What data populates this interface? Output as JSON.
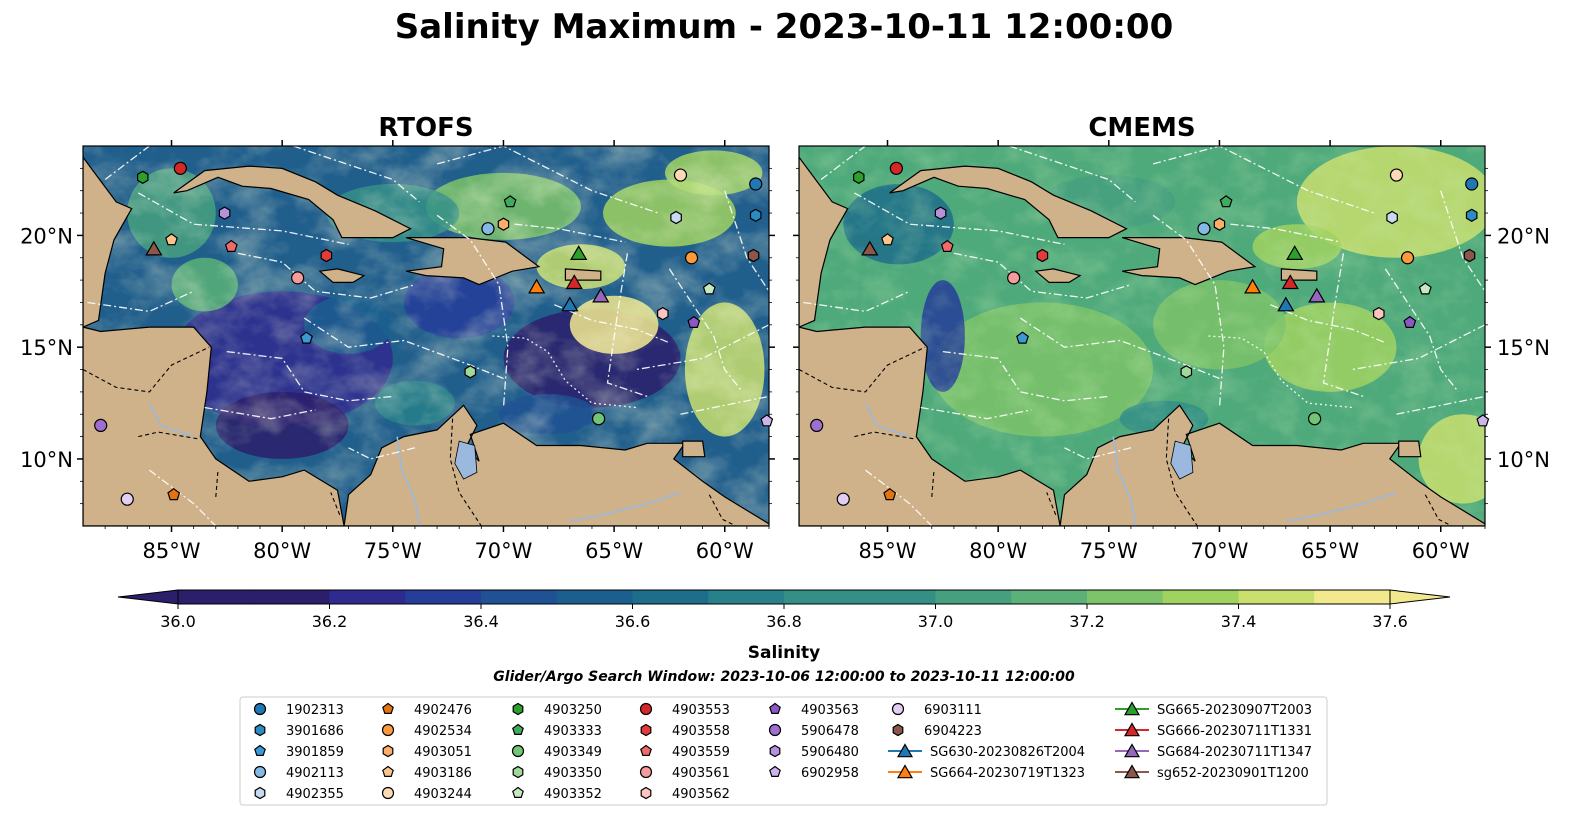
{
  "figure": {
    "title": "Salinity Maximum - 2023-10-11 12:00:00",
    "search_window_note": "Glider/Argo Search Window: 2023-10-06 12:00:00 to 2023-10-11 12:00:00"
  },
  "colors": {
    "land": "#cfb28a",
    "river": "#9bb8de",
    "boundary": "#000000",
    "eez": "#ffffff",
    "colormap": [
      "#2b1f6b",
      "#2f2a8e",
      "#263d9a",
      "#205193",
      "#1b5f8f",
      "#1e6e8b",
      "#27808a",
      "#358f87",
      "#46a07f",
      "#5bb177",
      "#7dc36a",
      "#a0d261",
      "#c9df6e",
      "#f2e98e"
    ]
  },
  "chart_data": [
    {
      "type": "heatmap",
      "title": "RTOFS",
      "xlim": [
        -89,
        -58
      ],
      "ylim": [
        7,
        24
      ],
      "xticks": [
        "85°W",
        "80°W",
        "75°W",
        "70°W",
        "65°W",
        "60°W"
      ],
      "yticks": [
        "10°N",
        "15°N",
        "20°N"
      ],
      "field_summary": "Low salinity (~36.0) in the Caribbean Sea interior and Pacific; high salinity (~37.6) patches near Puerto Rico and the Lesser Antilles"
    },
    {
      "type": "heatmap",
      "title": "CMEMS",
      "xlim": [
        -89,
        -58
      ],
      "ylim": [
        7,
        24
      ],
      "xticks": [
        "85°W",
        "80°W",
        "75°W",
        "70°W",
        "65°W",
        "60°W"
      ],
      "yticks": [
        "10°N",
        "15°N",
        "20°N"
      ],
      "field_summary": "Mostly 36.9–37.3 across the Caribbean, lower along coasts, higher (~37.5) in the northeast Atlantic"
    }
  ],
  "colorbar": {
    "label": "Salinity",
    "min": 36.0,
    "max": 37.6,
    "ticks": [
      "36.0",
      "36.2",
      "36.4",
      "36.6",
      "36.8",
      "37.0",
      "37.2",
      "37.4",
      "37.6"
    ],
    "extend": "both"
  },
  "legend": {
    "columns": [
      [
        {
          "label": "1902313",
          "marker": "circle",
          "color": "#1f77b4"
        },
        {
          "label": "3901686",
          "marker": "hexagon",
          "color": "#2b8cc4"
        },
        {
          "label": "3901859",
          "marker": "pentagon",
          "color": "#3a9ad6"
        },
        {
          "label": "4902113",
          "marker": "circle",
          "color": "#84b9e3"
        },
        {
          "label": "4902355",
          "marker": "hexagon",
          "color": "#c6dbef"
        }
      ],
      [
        {
          "label": "4902476",
          "marker": "pentagon",
          "color": "#e6740e"
        },
        {
          "label": "4902534",
          "marker": "circle",
          "color": "#fd9a3e"
        },
        {
          "label": "4903051",
          "marker": "hexagon",
          "color": "#fdae6b"
        },
        {
          "label": "4903186",
          "marker": "pentagon",
          "color": "#fdc58e"
        },
        {
          "label": "4903244",
          "marker": "circle",
          "color": "#fdd9b4"
        }
      ],
      [
        {
          "label": "4903250",
          "marker": "hexagon",
          "color": "#2ca02c"
        },
        {
          "label": "4903333",
          "marker": "pentagon",
          "color": "#41ab5d"
        },
        {
          "label": "4903349",
          "marker": "circle",
          "color": "#74c476"
        },
        {
          "label": "4903350",
          "marker": "hexagon",
          "color": "#a1d99b"
        },
        {
          "label": "4903352",
          "marker": "pentagon",
          "color": "#c7e9c0"
        }
      ],
      [
        {
          "label": "4903553",
          "marker": "circle",
          "color": "#d62728"
        },
        {
          "label": "4903558",
          "marker": "hexagon",
          "color": "#e33a3a"
        },
        {
          "label": "4903559",
          "marker": "pentagon",
          "color": "#f06a6a"
        },
        {
          "label": "4903561",
          "marker": "circle",
          "color": "#f59b9b"
        },
        {
          "label": "4903562",
          "marker": "hexagon",
          "color": "#fcc5c0"
        }
      ],
      [
        {
          "label": "4903563",
          "marker": "pentagon",
          "color": "#8c56c4"
        },
        {
          "label": "5906478",
          "marker": "circle",
          "color": "#9e6fd0"
        },
        {
          "label": "5906480",
          "marker": "hexagon",
          "color": "#b592dc"
        },
        {
          "label": "6902958",
          "marker": "pentagon",
          "color": "#cdb4ea"
        }
      ],
      [
        {
          "label": "6903111",
          "marker": "circle",
          "color": "#e3cdf2"
        },
        {
          "label": "6904223",
          "marker": "hexagon",
          "color": "#8c564b"
        },
        {
          "label": "SG630-20230826T2004",
          "marker": "triangle",
          "color": "#1f77b4",
          "line": true
        },
        {
          "label": "SG664-20230719T1323",
          "marker": "triangle",
          "color": "#ff7f0e",
          "line": true
        }
      ],
      [
        {
          "label": "SG665-20230907T2003",
          "marker": "triangle",
          "color": "#2ca02c",
          "line": true
        },
        {
          "label": "SG666-20230711T1331",
          "marker": "triangle",
          "color": "#d62728",
          "line": true
        },
        {
          "label": "SG684-20230711T1347",
          "marker": "triangle",
          "color": "#9467bd",
          "line": true
        },
        {
          "label": "sg652-20230901T1200",
          "marker": "triangle",
          "color": "#8c564b",
          "line": true
        }
      ]
    ]
  },
  "observations": [
    {
      "id": "1902313",
      "lon": -58.6,
      "lat": 22.3
    },
    {
      "id": "3901686",
      "lon": -58.6,
      "lat": 20.9
    },
    {
      "id": "4902355",
      "lon": -62.2,
      "lat": 20.8
    },
    {
      "id": "4902113",
      "lon": -70.7,
      "lat": 20.3
    },
    {
      "id": "4903051",
      "lon": -70.0,
      "lat": 20.5
    },
    {
      "id": "4903244",
      "lon": -62.0,
      "lat": 22.7
    },
    {
      "id": "4903553",
      "lon": -84.6,
      "lat": 23.0
    },
    {
      "id": "4903250",
      "lon": -86.3,
      "lat": 22.6
    },
    {
      "id": "5906480",
      "lon": -82.6,
      "lat": 21.0
    },
    {
      "id": "4903333",
      "lon": -69.7,
      "lat": 21.5
    },
    {
      "id": "4903186",
      "lon": -85.0,
      "lat": 19.8
    },
    {
      "id": "4903559",
      "lon": -82.3,
      "lat": 19.5
    },
    {
      "id": "4903558",
      "lon": -78.0,
      "lat": 19.1
    },
    {
      "id": "4903561",
      "lon": -79.3,
      "lat": 18.1
    },
    {
      "id": "6904223",
      "lon": -58.7,
      "lat": 19.1
    },
    {
      "id": "4902534",
      "lon": -61.5,
      "lat": 19.0
    },
    {
      "id": "4903352",
      "lon": -60.7,
      "lat": 17.6
    },
    {
      "id": "3901859",
      "lon": -78.9,
      "lat": 15.4
    },
    {
      "id": "4903562",
      "lon": -62.8,
      "lat": 16.5
    },
    {
      "id": "4903563",
      "lon": -61.4,
      "lat": 16.1
    },
    {
      "id": "4903350",
      "lon": -71.5,
      "lat": 13.9
    },
    {
      "id": "4903349",
      "lon": -65.7,
      "lat": 11.8
    },
    {
      "id": "6902958",
      "lon": -58.1,
      "lat": 11.7
    },
    {
      "id": "5906478",
      "lon": -88.2,
      "lat": 11.5
    },
    {
      "id": "4902476",
      "lon": -84.9,
      "lat": 8.4
    },
    {
      "id": "6903111",
      "lon": -87.0,
      "lat": 8.2
    },
    {
      "id": "SG630-20230826T2004",
      "lon": -67.0,
      "lat": 16.9
    },
    {
      "id": "SG664-20230719T1323",
      "lon": -68.5,
      "lat": 17.7
    },
    {
      "id": "SG665-20230907T2003",
      "lon": -66.6,
      "lat": 19.2
    },
    {
      "id": "SG666-20230711T1331",
      "lon": -66.8,
      "lat": 17.9
    },
    {
      "id": "SG684-20230711T1347",
      "lon": -65.6,
      "lat": 17.3
    },
    {
      "id": "sg652-20230901T1200",
      "lon": -85.8,
      "lat": 19.4
    }
  ]
}
